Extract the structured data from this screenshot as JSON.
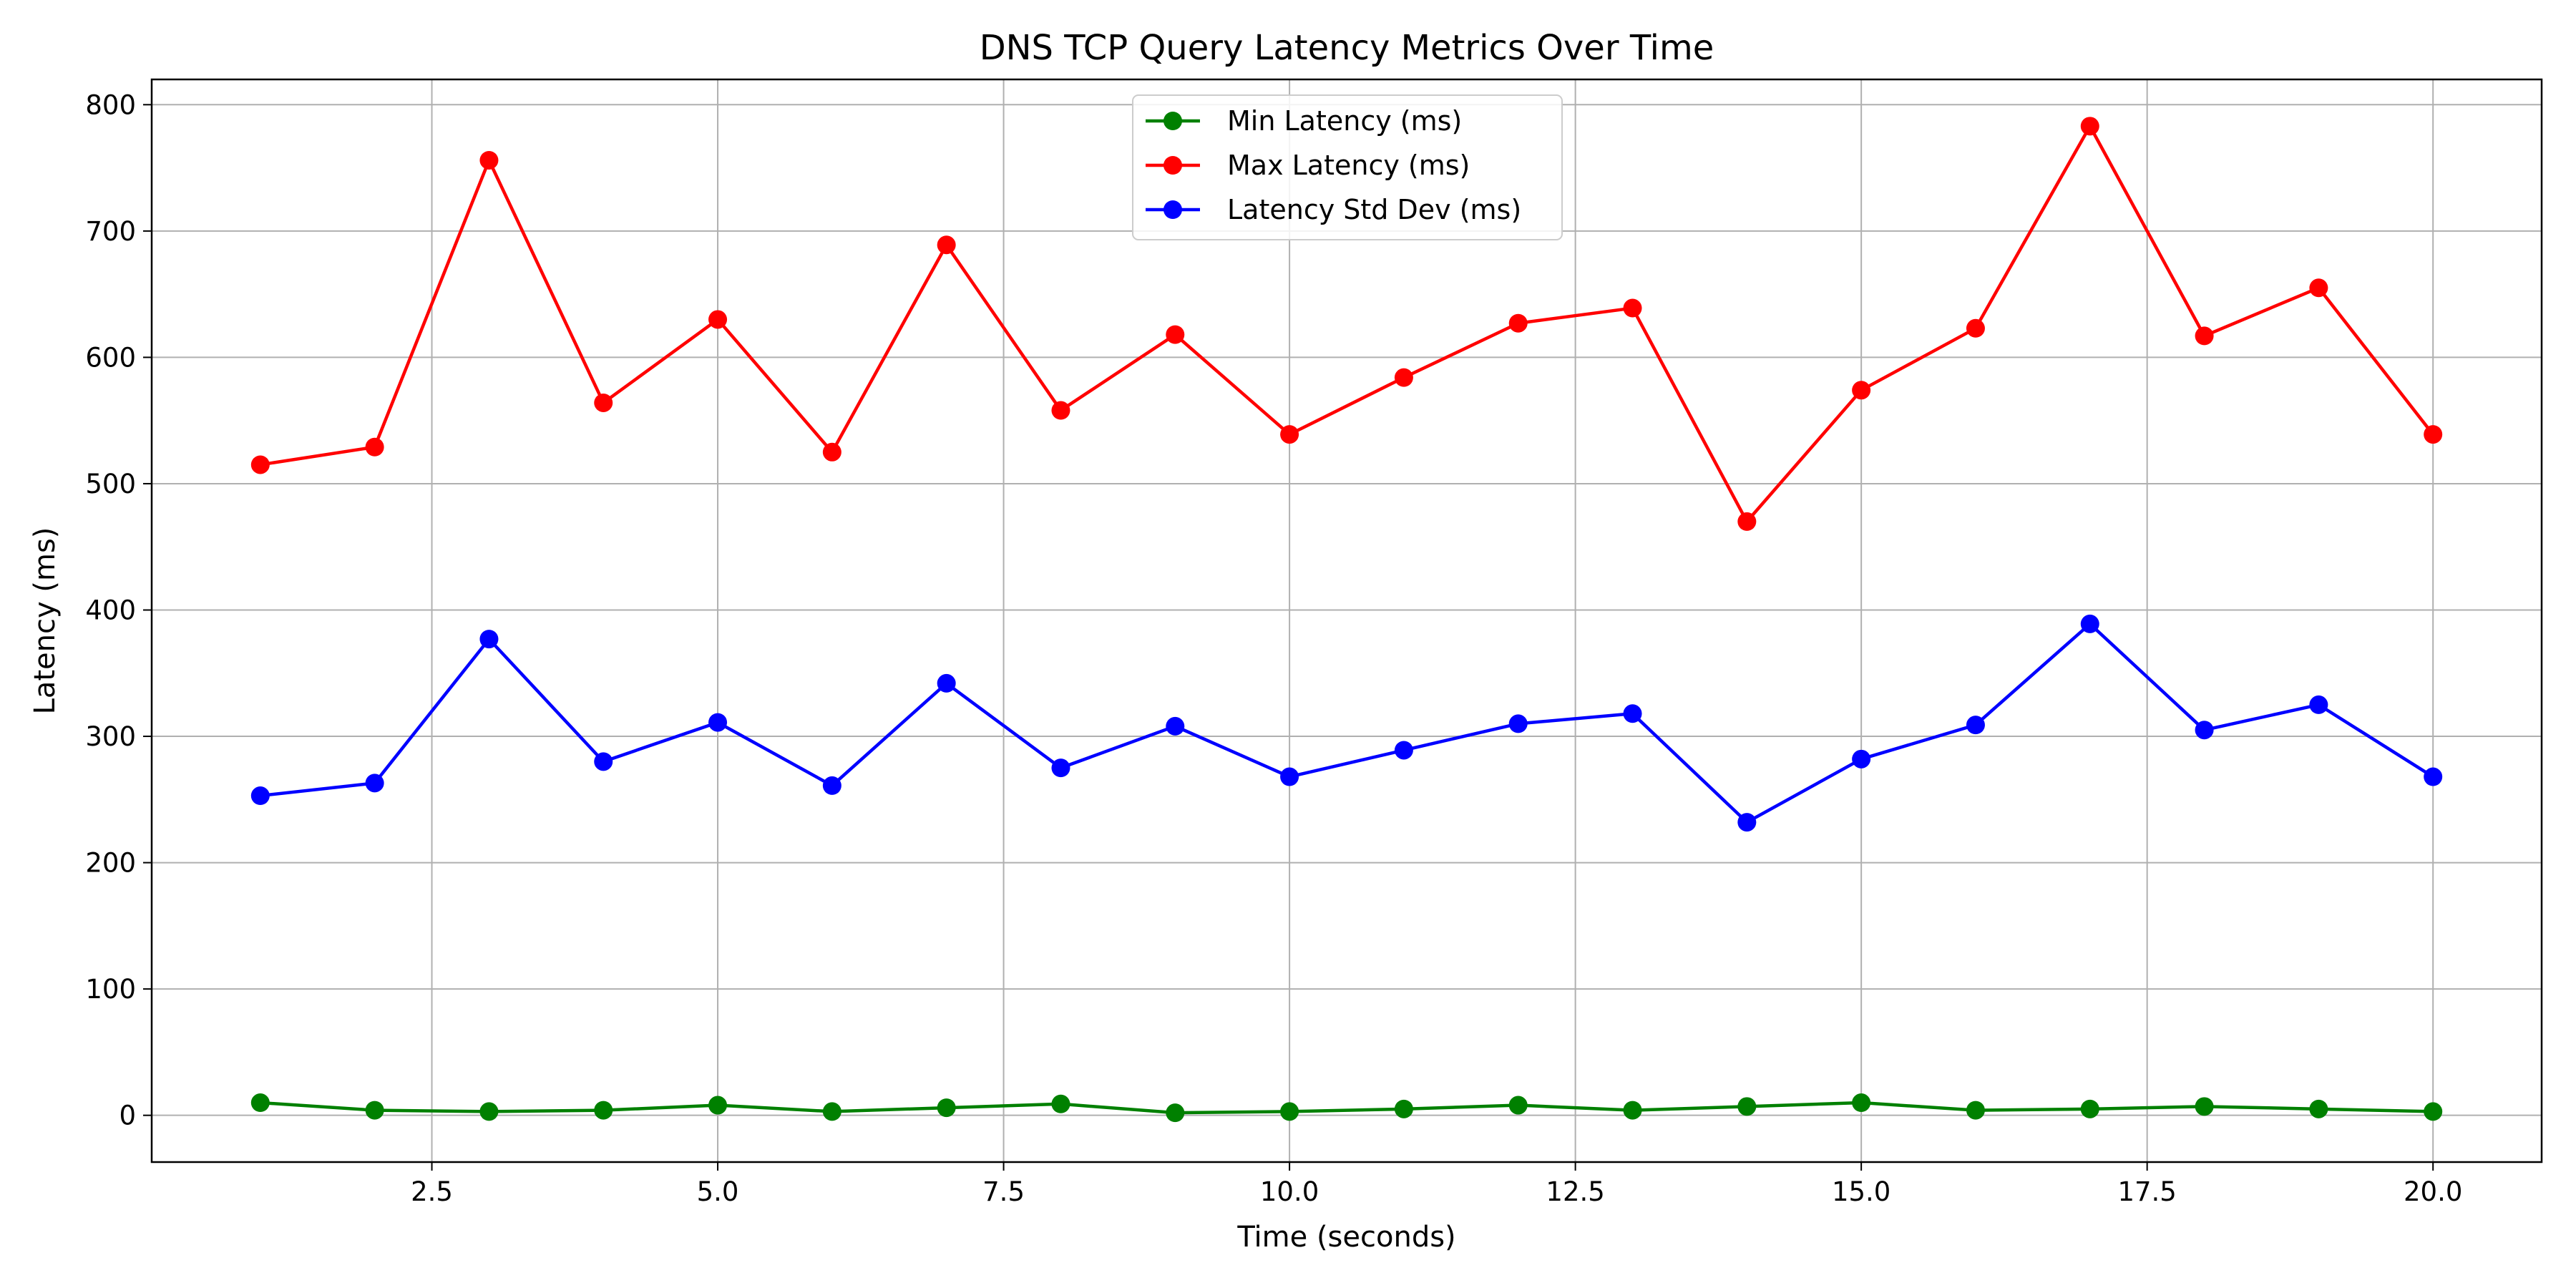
{
  "chart_data": {
    "type": "line",
    "title": "DNS TCP Query Latency Metrics Over Time",
    "xlabel": "Time (seconds)",
    "ylabel": "Latency (ms)",
    "xlim": [
      0.05,
      20.95
    ],
    "ylim": [
      -37,
      820
    ],
    "xticks": [
      2.5,
      5.0,
      7.5,
      10.0,
      12.5,
      15.0,
      17.5,
      20.0
    ],
    "xtick_labels": [
      "2.5",
      "5.0",
      "7.5",
      "10.0",
      "12.5",
      "15.0",
      "17.5",
      "20.0"
    ],
    "yticks": [
      0,
      100,
      200,
      300,
      400,
      500,
      600,
      700,
      800
    ],
    "ytick_labels": [
      "0",
      "100",
      "200",
      "300",
      "400",
      "500",
      "600",
      "700",
      "800"
    ],
    "grid": true,
    "legend_position": "top-center",
    "x": [
      1,
      2,
      3,
      4,
      5,
      6,
      7,
      8,
      9,
      10,
      11,
      12,
      13,
      14,
      15,
      16,
      17,
      18,
      19,
      20
    ],
    "series": [
      {
        "name": "Min Latency (ms)",
        "color": "#008000",
        "values": [
          10,
          4,
          3,
          4,
          8,
          3,
          6,
          9,
          2,
          3,
          5,
          8,
          4,
          7,
          10,
          4,
          5,
          7,
          5,
          3
        ]
      },
      {
        "name": "Max Latency (ms)",
        "color": "#ff0000",
        "values": [
          515,
          529,
          756,
          564,
          630,
          525,
          689,
          558,
          618,
          539,
          584,
          627,
          639,
          470,
          574,
          623,
          783,
          617,
          655,
          539
        ]
      },
      {
        "name": "Latency Std Dev (ms)",
        "color": "#0000ff",
        "values": [
          253,
          263,
          377,
          280,
          311,
          261,
          342,
          275,
          308,
          268,
          289,
          310,
          318,
          232,
          282,
          309,
          389,
          305,
          325,
          268
        ]
      }
    ]
  }
}
